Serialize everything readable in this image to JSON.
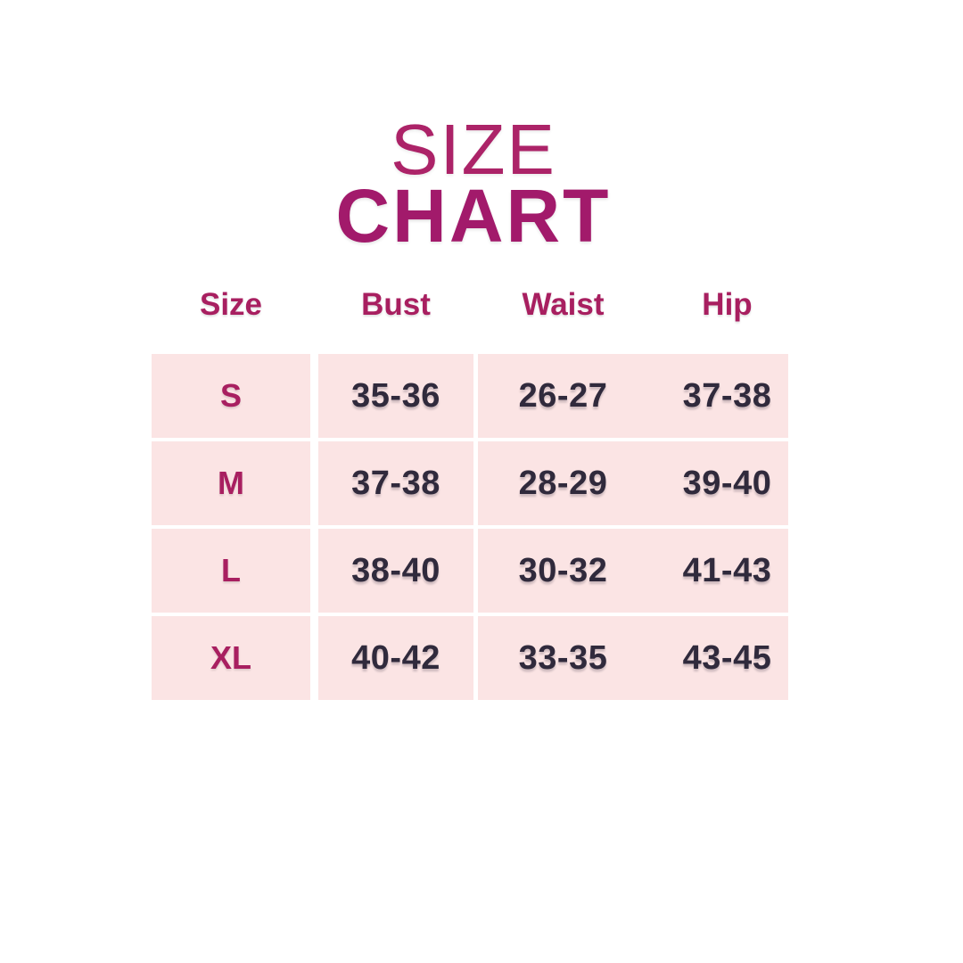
{
  "title": {
    "line1": "SIZE",
    "line2": "CHART"
  },
  "colors": {
    "page_background": "#FFFFFF",
    "title_size_text": "#AC2368",
    "title_chart_text": "#A21A6B",
    "header_text": "#A81F60",
    "size_label_text": "#A81F60",
    "value_text": "#302A3C",
    "cell_background": "#FBE4E4"
  },
  "chart_data": {
    "type": "table",
    "title": "SIZE CHART",
    "columns": [
      "Size",
      "Bust",
      "Waist",
      "Hip"
    ],
    "rows": [
      [
        "S",
        "35-36",
        "26-27",
        "37-38"
      ],
      [
        "M",
        "37-38",
        "28-29",
        "39-40"
      ],
      [
        "L",
        "38-40",
        "30-32",
        "41-43"
      ],
      [
        "XL",
        "40-42",
        "33-35",
        "43-45"
      ]
    ]
  }
}
